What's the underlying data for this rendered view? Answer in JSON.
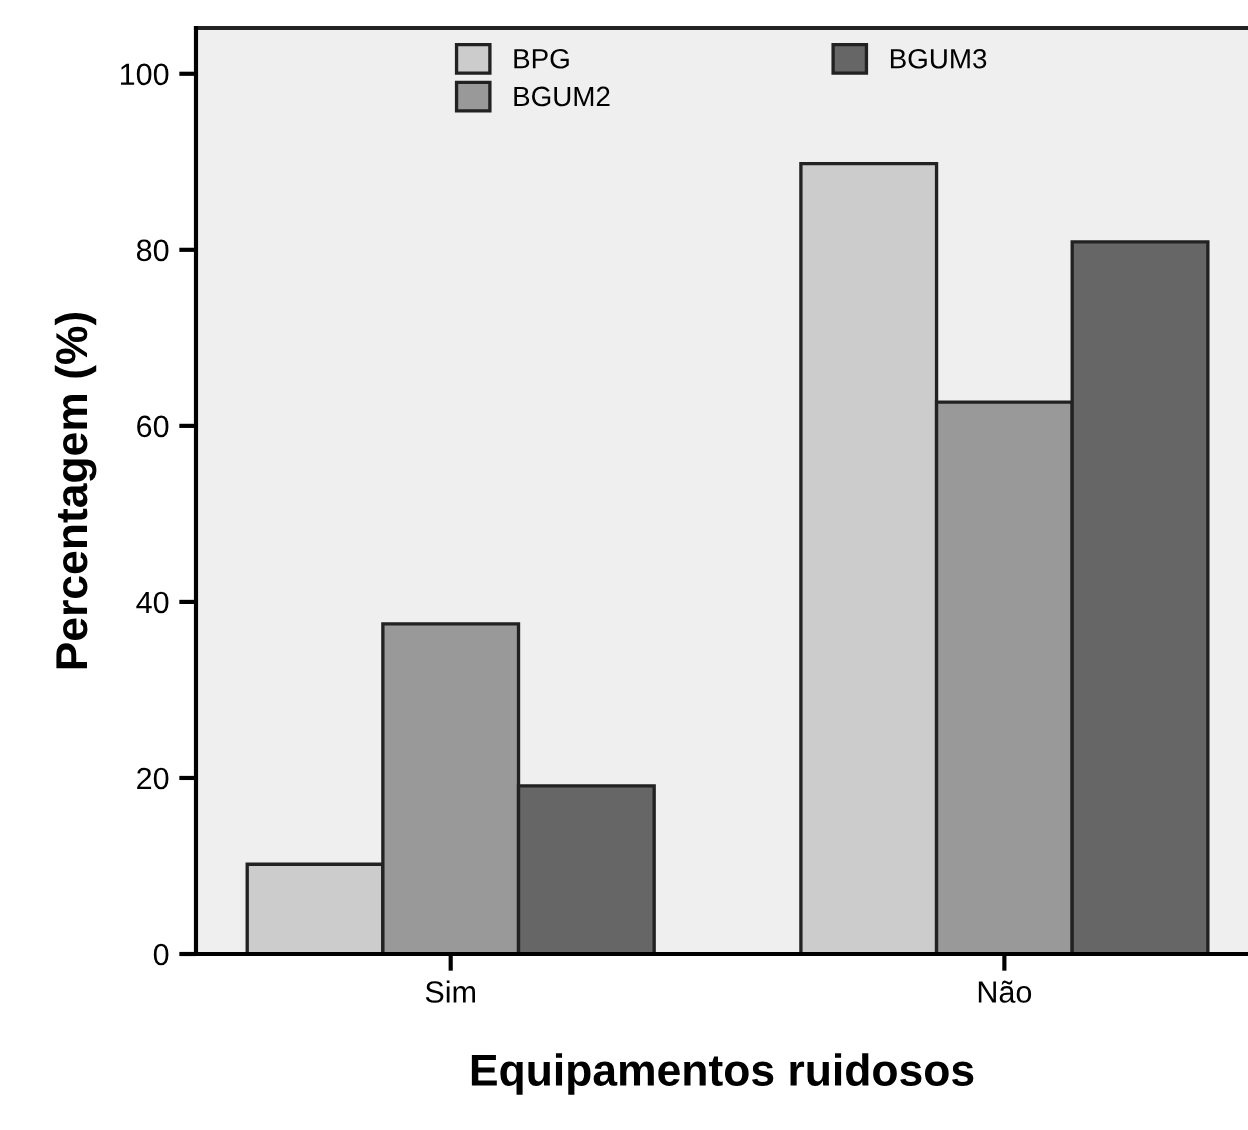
{
  "chart_data": {
    "type": "bar",
    "xlabel": "Equipamentos ruidosos",
    "ylabel": "Percentagem (%)",
    "categories": [
      "Sim",
      "Não"
    ],
    "series": [
      {
        "name": "BPG",
        "color": "#cccccc",
        "values": [
          10.2,
          89.8
        ]
      },
      {
        "name": "BGUM2",
        "color": "#999999",
        "values": [
          37.5,
          62.7
        ]
      },
      {
        "name": "BGUM3",
        "color": "#666666",
        "values": [
          19.1,
          80.9
        ]
      }
    ],
    "ylim": [
      0,
      105.2
    ],
    "yticks": [
      0,
      20,
      40,
      60,
      80,
      100
    ],
    "grid": false,
    "legend": "top"
  }
}
